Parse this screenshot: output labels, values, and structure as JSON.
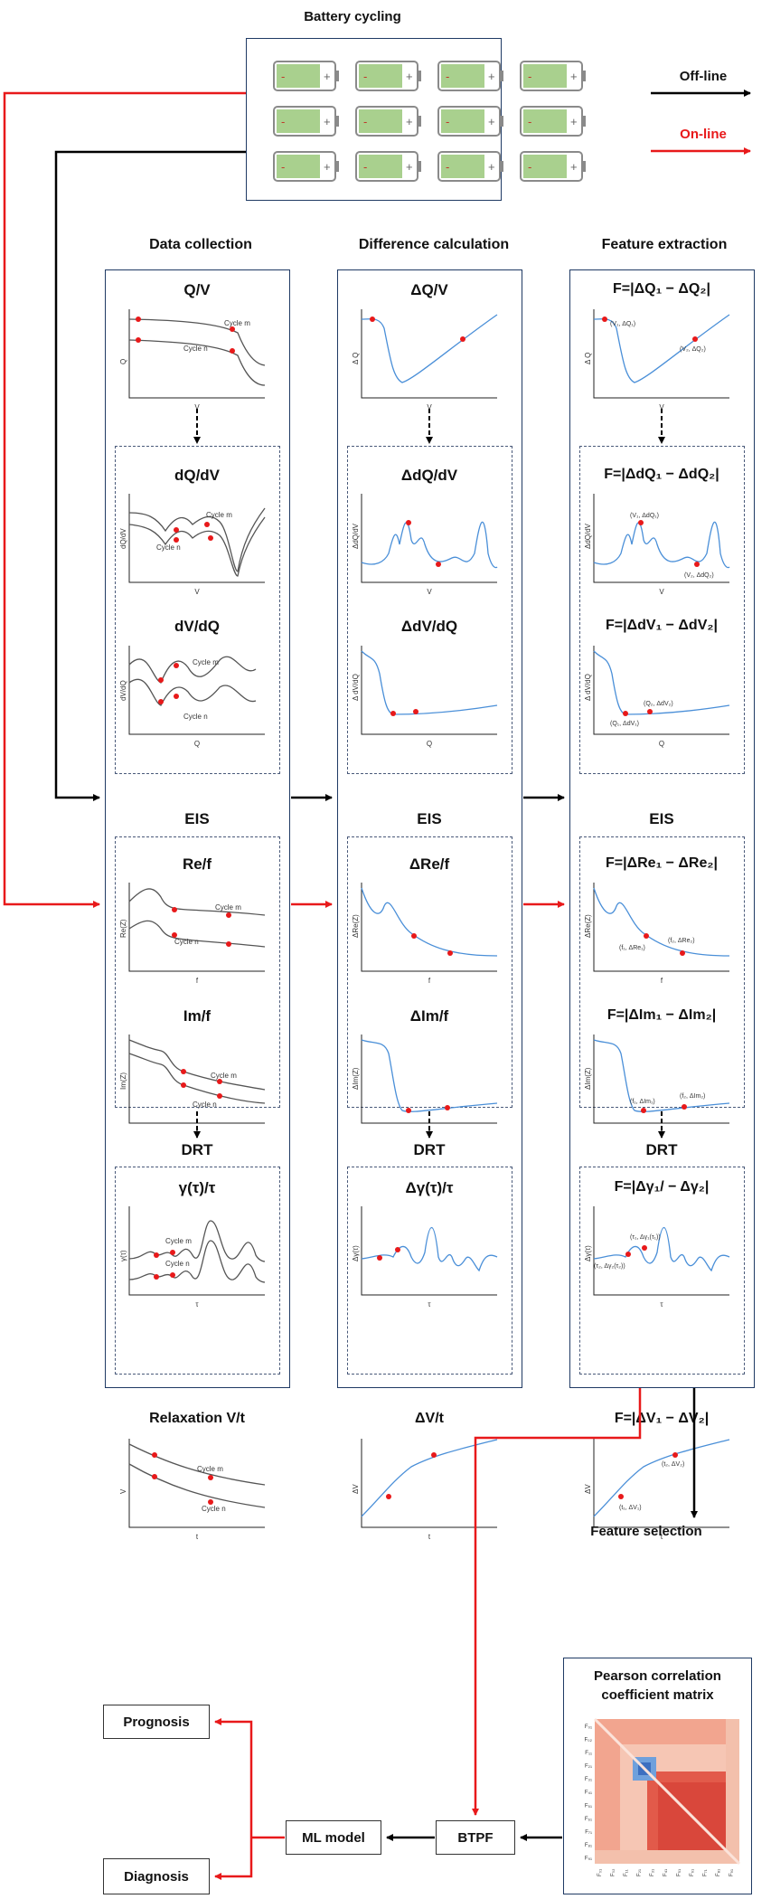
{
  "title": "Battery cycling",
  "legend": {
    "offline": "Off-line",
    "online": "On-line",
    "offline_color": "#000000",
    "online_color": "#e8191a"
  },
  "colors": {
    "frame": "#1f3a64",
    "curve_gray": "#555555",
    "curve_blue": "#4a8fd8",
    "marker_red": "#e8191a",
    "cell_fill": "#a9d08e"
  },
  "columns": {
    "data_collection": {
      "header": "Data collection",
      "qv": {
        "title": "Q/V",
        "ylabel": "Q",
        "xlabel": "V",
        "cycle_m": "Cycle m",
        "cycle_n": "Cycle n"
      },
      "dqdv": {
        "title": "dQ/dV",
        "ylabel": "dQ/dV",
        "xlabel": "V",
        "cycle_m": "Cycle m",
        "cycle_n": "Cycle n"
      },
      "dvdq": {
        "title": "dV/dQ",
        "ylabel": "dV/dQ",
        "xlabel": "Q",
        "cycle_m": "Cycle m",
        "cycle_n": "Cycle n"
      },
      "eis": "EIS",
      "ref": {
        "title": "Re/f",
        "ylabel": "Re(Z)",
        "xlabel": "f",
        "cycle_m": "Cycle m",
        "cycle_n": "Cycle n"
      },
      "imf": {
        "title": "Im/f",
        "ylabel": "Im(Z)",
        "xlabel": "f",
        "cycle_m": "Cycle m",
        "cycle_n": "Cycle n"
      },
      "drt": "DRT",
      "gamma": {
        "title": "γ(τ)/τ",
        "ylabel": "γ(τ)",
        "xlabel": "τ",
        "cycle_m": "Cycle m",
        "cycle_n": "Cycle n"
      },
      "relax": {
        "title": "Relaxation V/t",
        "ylabel": "V",
        "xlabel": "t",
        "cycle_m": "Cycle m",
        "cycle_n": "Cycle n"
      }
    },
    "difference_calculation": {
      "header": "Difference calculation",
      "qv": {
        "title": "ΔQ/V",
        "ylabel": "Δ Q",
        "xlabel": "V"
      },
      "dqdv": {
        "title": "ΔdQ/dV",
        "ylabel": "ΔdQ/dV",
        "xlabel": "V"
      },
      "dvdq": {
        "title": "ΔdV/dQ",
        "ylabel": "Δ dV/dQ",
        "xlabel": "Q"
      },
      "eis": "EIS",
      "ref": {
        "title": "ΔRe/f",
        "ylabel": "ΔRe(Z)",
        "xlabel": "f"
      },
      "imf": {
        "title": "ΔIm/f",
        "ylabel": "ΔIm(Z)",
        "xlabel": "f"
      },
      "drt": "DRT",
      "gamma": {
        "title": "Δγ(τ)/τ",
        "ylabel": "Δγ(τ)",
        "xlabel": "τ"
      },
      "relax": {
        "title": "ΔV/t",
        "ylabel": "ΔV",
        "xlabel": "t"
      }
    },
    "feature_extraction": {
      "header": "Feature extraction",
      "qv": {
        "title": "F=|ΔQ₁ − ΔQ₂|",
        "ylabel": "Δ Q",
        "xlabel": "V",
        "p1": "(V₁, ΔQ₁)",
        "p2": "(V₂, ΔQ₂)"
      },
      "dqdv": {
        "title": "F=|ΔdQ₁ − ΔdQ₂|",
        "ylabel": "ΔdQ/dV",
        "xlabel": "V",
        "p1": "(V₁, ΔdQ₁)",
        "p2": "(V₂, ΔdQ₂)"
      },
      "dvdq": {
        "title": "F=|ΔdV₁ − ΔdV₂|",
        "ylabel": "Δ dV/dQ",
        "xlabel": "Q",
        "p1": "(Q₁, ΔdV₁)",
        "p2": "(Q₂, ΔdV₂)"
      },
      "eis": "EIS",
      "ref": {
        "title": "F=|ΔRe₁ − ΔRe₂|",
        "ylabel": "ΔRe(Z)",
        "xlabel": "f",
        "p1": "(f₁, ΔRe₁)",
        "p2": "(f₂, ΔRe₂)"
      },
      "imf": {
        "title": "F=|ΔIm₁ − ΔIm₂|",
        "ylabel": "ΔIm(Z)",
        "xlabel": "f",
        "p1": "(f₁, ΔIm₁)",
        "p2": "(f₂, ΔIm₂)"
      },
      "drt": "DRT",
      "gamma": {
        "title": "F=|Δγ₁/ − Δγ₂|",
        "ylabel": "Δγ(τ)",
        "xlabel": "τ",
        "p1": "(τ₁, Δγ₁(τ₁))",
        "p2": "(τ₂, Δγ₂(τ₂))"
      },
      "relax": {
        "title": "F=|ΔV₁ − ΔV₂|",
        "ylabel": "ΔV",
        "xlabel": "t",
        "p1": "(t₁, ΔV₁)",
        "p2": "(t₂, ΔV₂)"
      }
    }
  },
  "feature_selection": "Feature selection",
  "pearson": {
    "title_line1": "Pearson correlation",
    "title_line2": "coefficient matrix",
    "labels": [
      "F₀₁",
      "F₀₂",
      "F₁₁",
      "F₂₁",
      "F₃₁",
      "F₄₁",
      "F₅₁",
      "F₆₁",
      "F₇₁",
      "F₈₁",
      "F₉₁"
    ]
  },
  "btpf": "BTPF",
  "ml_model": "ML model",
  "prognosis": "Prognosis",
  "diagnosis": "Diagnosis"
}
